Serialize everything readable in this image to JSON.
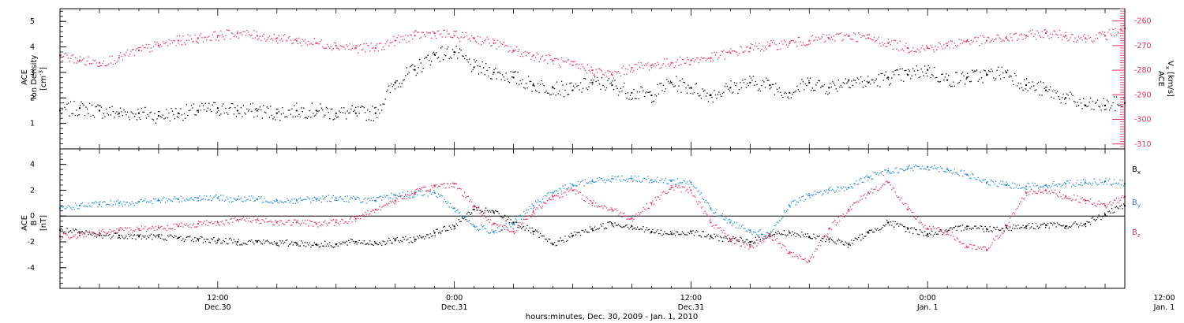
{
  "chart_data": [
    {
      "type": "scatter",
      "id": "ion-density-vx",
      "ylabel_lines": [
        "ACE",
        "Ion Density"
      ],
      "ylabel_unit": "[cm",
      "ylabel_unit_sup": "-3",
      "ylabel_unit_close": "]",
      "ylim": [
        0,
        5.5
      ],
      "yticks": [
        1,
        2,
        3,
        4,
        5
      ],
      "y2label_lines": [
        "ACE",
        "V"
      ],
      "y2label_sub": "x",
      "y2label_unit": "[km/s]",
      "y2lim": [
        -312,
        -255
      ],
      "y2ticks": [
        -260,
        -270,
        -280,
        -290,
        -300,
        -310
      ],
      "xlim": [
        4,
        58
      ],
      "series": [
        {
          "color": "#000000",
          "x": [
            4,
            5,
            6,
            7,
            8,
            9,
            10,
            11,
            12,
            13,
            14,
            15,
            16,
            17,
            18,
            19,
            20,
            21,
            22,
            23,
            24,
            25,
            26,
            27,
            28,
            29,
            30,
            31,
            32,
            33,
            34,
            35,
            36,
            37,
            38,
            39,
            40,
            41,
            42,
            43,
            44,
            45,
            46,
            47,
            48,
            49,
            50,
            51,
            52,
            53,
            54,
            55,
            56,
            57,
            58
          ],
          "y": [
            1.5,
            1.6,
            1.5,
            1.4,
            1.4,
            1.3,
            1.4,
            1.5,
            1.6,
            1.5,
            1.5,
            1.4,
            1.5,
            1.5,
            1.4,
            1.4,
            1.4,
            2.6,
            3.1,
            3.7,
            3.8,
            3.2,
            3.0,
            2.8,
            2.5,
            2.4,
            2.3,
            2.6,
            2.5,
            2.2,
            2.1,
            2.6,
            2.4,
            2.1,
            2.4,
            2.6,
            2.5,
            2.2,
            2.6,
            2.4,
            2.7,
            2.6,
            2.8,
            2.9,
            3.1,
            2.7,
            2.8,
            2.9,
            3.0,
            2.5,
            2.3,
            2.0,
            1.7,
            1.7,
            1.8
          ]
        },
        {
          "color": "#e8305f",
          "axis": "y2",
          "x": [
            4,
            5,
            6,
            7,
            8,
            9,
            10,
            11,
            12,
            13,
            14,
            15,
            16,
            17,
            18,
            19,
            20,
            21,
            22,
            23,
            24,
            25,
            26,
            27,
            28,
            29,
            30,
            31,
            32,
            33,
            34,
            35,
            36,
            37,
            38,
            39,
            40,
            41,
            42,
            43,
            44,
            45,
            46,
            47,
            48,
            49,
            50,
            51,
            52,
            53,
            54,
            55,
            56,
            57,
            58
          ],
          "y": [
            -274,
            -276,
            -277,
            -275,
            -272,
            -270,
            -268,
            -267,
            -266,
            -265,
            -266,
            -267,
            -268,
            -269,
            -270,
            -271,
            -271,
            -268,
            -266,
            -265,
            -266,
            -267,
            -269,
            -272,
            -274,
            -276,
            -278,
            -280,
            -282,
            -279,
            -278,
            -277,
            -276,
            -275,
            -273,
            -271,
            -270,
            -269,
            -268,
            -267,
            -266,
            -267,
            -269,
            -271,
            -271,
            -270,
            -268,
            -268,
            -267,
            -266,
            -265,
            -266,
            -267,
            -266,
            -263
          ]
        }
      ]
    },
    {
      "type": "scatter",
      "id": "magnetic-field",
      "ylabel_lines": [
        "ACE",
        "B"
      ],
      "ylabel_unit": "[nT]",
      "ylim": [
        -5.6,
        5.2
      ],
      "yticks": [
        -4,
        -2,
        0,
        2,
        4
      ],
      "xlim": [
        4,
        58
      ],
      "legend": "right",
      "series": [
        {
          "name": "B",
          "sub": "x",
          "color": "#000000",
          "x": [
            4,
            5,
            6,
            7,
            8,
            9,
            10,
            11,
            12,
            13,
            14,
            15,
            16,
            17,
            18,
            19,
            20,
            21,
            22,
            23,
            24,
            25,
            26,
            27,
            28,
            29,
            30,
            31,
            32,
            33,
            34,
            35,
            36,
            37,
            38,
            39,
            40,
            41,
            42,
            43,
            44,
            45,
            46,
            47,
            48,
            49,
            50,
            51,
            52,
            53,
            54,
            55,
            56,
            57,
            58
          ],
          "y": [
            -1.1,
            -1.3,
            -1.5,
            -1.5,
            -1.6,
            -1.6,
            -1.7,
            -1.8,
            -1.9,
            -2.0,
            -2.0,
            -2.1,
            -2.1,
            -2.2,
            -2.2,
            -2.0,
            -2.1,
            -1.9,
            -1.8,
            -1.3,
            -0.8,
            0.5,
            0.3,
            -0.5,
            -1.2,
            -2.2,
            -1.5,
            -1.0,
            -0.6,
            -0.8,
            -1.2,
            -1.4,
            -1.2,
            -1.6,
            -1.8,
            -2.0,
            -1.4,
            -1.3,
            -1.6,
            -1.8,
            -2.2,
            -1.3,
            -0.5,
            -1.0,
            -1.4,
            -1.2,
            -0.8,
            -1.0,
            -0.9,
            -0.8,
            -0.7,
            -0.8,
            -0.6,
            0.1,
            0.8
          ]
        },
        {
          "name": "B",
          "sub": "y",
          "color": "#1e88e5",
          "x": [
            4,
            5,
            6,
            7,
            8,
            9,
            10,
            11,
            12,
            13,
            14,
            15,
            16,
            17,
            18,
            19,
            20,
            21,
            22,
            23,
            24,
            25,
            26,
            27,
            28,
            29,
            30,
            31,
            32,
            33,
            34,
            35,
            36,
            37,
            38,
            39,
            40,
            41,
            42,
            43,
            44,
            45,
            46,
            47,
            48,
            49,
            50,
            51,
            52,
            53,
            54,
            55,
            56,
            57,
            58
          ],
          "y": [
            0.6,
            0.8,
            0.9,
            1.0,
            1.1,
            1.2,
            1.3,
            1.4,
            1.4,
            1.3,
            1.3,
            1.2,
            1.2,
            1.3,
            1.4,
            1.3,
            1.2,
            1.6,
            1.7,
            1.8,
            0.6,
            -0.8,
            -1.2,
            -0.6,
            0.8,
            1.8,
            2.4,
            2.7,
            2.9,
            2.9,
            2.8,
            2.7,
            2.6,
            0.6,
            -0.5,
            -1.1,
            -1.5,
            0.8,
            1.6,
            2.0,
            2.2,
            3.0,
            3.5,
            3.7,
            3.8,
            3.6,
            3.2,
            2.6,
            2.4,
            2.3,
            2.4,
            2.5,
            2.6,
            2.7,
            2.5
          ]
        },
        {
          "name": "B",
          "sub": "z",
          "color": "#e8305f",
          "x": [
            4,
            5,
            6,
            7,
            8,
            9,
            10,
            11,
            12,
            13,
            14,
            15,
            16,
            17,
            18,
            19,
            20,
            21,
            22,
            23,
            24,
            25,
            26,
            27,
            28,
            29,
            30,
            31,
            32,
            33,
            34,
            35,
            36,
            37,
            38,
            39,
            40,
            41,
            42,
            43,
            44,
            45,
            46,
            47,
            48,
            49,
            50,
            51,
            52,
            53,
            54,
            55,
            56,
            57,
            58
          ],
          "y": [
            -1.6,
            -1.5,
            -1.3,
            -1.1,
            -1.0,
            -0.9,
            -0.8,
            -0.6,
            -0.5,
            -0.3,
            -0.3,
            -0.5,
            -0.5,
            -0.6,
            -0.5,
            -0.2,
            0.5,
            1.2,
            1.8,
            2.3,
            2.5,
            0.8,
            -0.6,
            -1.2,
            0.3,
            1.5,
            2.0,
            1.0,
            0.5,
            -0.2,
            1.0,
            2.2,
            2.0,
            -0.5,
            -1.8,
            -2.4,
            -1.5,
            -2.8,
            -3.5,
            -1.0,
            0.5,
            1.8,
            2.6,
            0.5,
            -1.0,
            -1.2,
            -2.4,
            -2.6,
            -0.8,
            1.8,
            2.0,
            1.5,
            1.2,
            0.8,
            1.5
          ]
        }
      ]
    }
  ],
  "xaxis": {
    "ticks": [
      {
        "x": 12,
        "line1": "12:00",
        "line2": "Dec.30"
      },
      {
        "x": 24,
        "line1": "0:00",
        "line2": "Dec.31"
      },
      {
        "x": 36,
        "line1": "12:00",
        "line2": "Dec.31"
      },
      {
        "x": 48,
        "line1": "0:00",
        "line2": "Jan. 1"
      },
      {
        "x": 60,
        "line1": "12:00",
        "line2": "Jan. 1"
      }
    ],
    "label": "hours:minutes, Dec. 30, 2009 - Jan.  1, 2010"
  }
}
